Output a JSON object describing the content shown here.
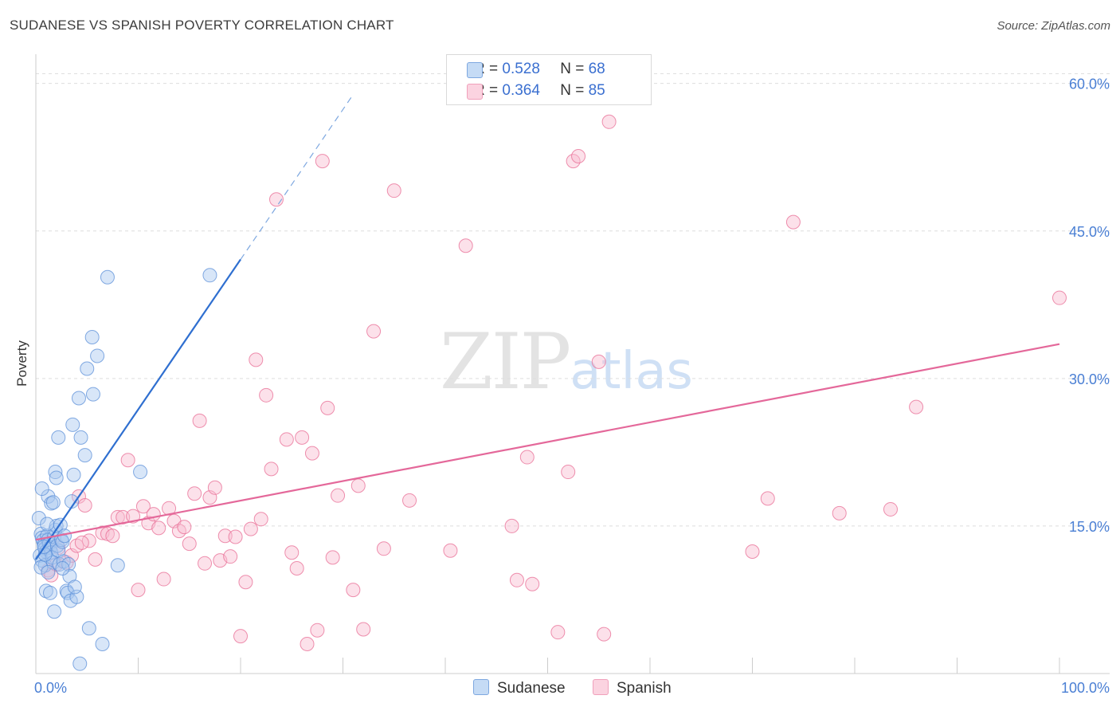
{
  "header": {
    "title": "SUDANESE VS SPANISH POVERTY CORRELATION CHART",
    "source": "Source: ZipAtlas.com"
  },
  "watermark": {
    "zip": "ZIP",
    "atlas": "atlas"
  },
  "legend": {
    "rows": [
      {
        "r_label": "R = ",
        "r_value": "0.528",
        "n_label": "N = ",
        "n_value": "68",
        "color": "#a8c8f0"
      },
      {
        "r_label": "R = ",
        "r_value": "0.364",
        "n_label": "N = ",
        "n_value": "85",
        "color": "#f8bcd0"
      }
    ]
  },
  "bottom_legend": {
    "sudanese": "Sudanese",
    "spanish": "Spanish"
  },
  "chart_data": {
    "type": "scatter",
    "title": "SUDANESE VS SPANISH POVERTY CORRELATION CHART",
    "xlabel": "",
    "ylabel": "Poverty",
    "xlim": [
      0,
      100
    ],
    "ylim": [
      0,
      62
    ],
    "x_tick_labels": [
      "0.0%",
      "100.0%"
    ],
    "y_ticks": [
      15,
      30,
      45,
      60
    ],
    "y_tick_labels": [
      "15.0%",
      "30.0%",
      "45.0%",
      "60.0%"
    ],
    "series": [
      {
        "name": "Sudanese",
        "color": "#5b8fd8",
        "fill": "#a8c8f0",
        "r": 0.528,
        "n": 68,
        "trend": {
          "x0": 0,
          "y0": 11.6,
          "x1": 20,
          "y1": 42.1,
          "dash_to_x": 31
        },
        "points": [
          [
            0.3,
            15.8
          ],
          [
            0.5,
            14.2
          ],
          [
            0.6,
            13.8
          ],
          [
            0.7,
            13.5
          ],
          [
            0.8,
            13.1
          ],
          [
            0.9,
            12.7
          ],
          [
            1.0,
            12.4
          ],
          [
            0.4,
            12.0
          ],
          [
            0.6,
            11.5
          ],
          [
            0.9,
            11.0
          ],
          [
            0.5,
            10.8
          ],
          [
            1.1,
            14.0
          ],
          [
            1.2,
            13.6
          ],
          [
            1.3,
            13.2
          ],
          [
            1.4,
            12.8
          ],
          [
            1.5,
            12.3
          ],
          [
            1.6,
            11.8
          ],
          [
            1.7,
            11.3
          ],
          [
            1.8,
            13.9
          ],
          [
            1.9,
            14.6
          ],
          [
            2.0,
            15.0
          ],
          [
            2.1,
            13.0
          ],
          [
            2.2,
            12.5
          ],
          [
            2.3,
            11.1
          ],
          [
            1.1,
            15.2
          ],
          [
            1.2,
            18.0
          ],
          [
            1.5,
            17.3
          ],
          [
            1.7,
            17.4
          ],
          [
            1.9,
            20.5
          ],
          [
            2.0,
            19.9
          ],
          [
            2.2,
            24.0
          ],
          [
            2.4,
            15.1
          ],
          [
            2.5,
            13.6
          ],
          [
            2.6,
            13.4
          ],
          [
            2.7,
            11.4
          ],
          [
            2.8,
            14.0
          ],
          [
            3.0,
            8.4
          ],
          [
            3.1,
            8.2
          ],
          [
            3.2,
            11.1
          ],
          [
            3.3,
            9.9
          ],
          [
            3.4,
            7.4
          ],
          [
            3.5,
            17.5
          ],
          [
            3.6,
            25.3
          ],
          [
            3.7,
            20.2
          ],
          [
            4.0,
            7.8
          ],
          [
            4.2,
            28.0
          ],
          [
            4.4,
            24.0
          ],
          [
            4.8,
            22.2
          ],
          [
            5.0,
            31.0
          ],
          [
            5.2,
            4.6
          ],
          [
            5.5,
            34.2
          ],
          [
            5.6,
            28.4
          ],
          [
            6.0,
            32.3
          ],
          [
            6.5,
            3.0
          ],
          [
            7.0,
            40.3
          ],
          [
            8.0,
            11.0
          ],
          [
            10.2,
            20.5
          ],
          [
            17.0,
            40.5
          ],
          [
            1.0,
            8.4
          ],
          [
            1.4,
            8.2
          ],
          [
            1.8,
            6.3
          ],
          [
            4.3,
            1.0
          ],
          [
            0.6,
            18.8
          ],
          [
            1.2,
            10.3
          ],
          [
            0.9,
            12.1
          ],
          [
            2.6,
            10.7
          ],
          [
            0.8,
            12.9
          ],
          [
            3.8,
            8.8
          ]
        ]
      },
      {
        "name": "Spanish",
        "color": "#e86c94",
        "fill": "#f8bcd0",
        "r": 0.364,
        "n": 85,
        "trend": {
          "x0": 0,
          "y0": 13.6,
          "x1": 100,
          "y1": 33.5
        },
        "points": [
          [
            1.2,
            10.5
          ],
          [
            1.5,
            10.0
          ],
          [
            2.0,
            11.1
          ],
          [
            2.2,
            12.8
          ],
          [
            3.0,
            11.3
          ],
          [
            3.5,
            12.0
          ],
          [
            4.0,
            13.0
          ],
          [
            4.2,
            18.0
          ],
          [
            4.8,
            17.1
          ],
          [
            5.2,
            13.5
          ],
          [
            5.8,
            11.6
          ],
          [
            6.5,
            14.3
          ],
          [
            7.0,
            14.2
          ],
          [
            7.5,
            14.0
          ],
          [
            8.0,
            15.9
          ],
          [
            8.5,
            15.9
          ],
          [
            9.0,
            21.7
          ],
          [
            9.5,
            16.0
          ],
          [
            10.0,
            8.5
          ],
          [
            10.5,
            17.0
          ],
          [
            11.0,
            15.3
          ],
          [
            11.5,
            16.2
          ],
          [
            12.0,
            14.8
          ],
          [
            12.5,
            9.6
          ],
          [
            13.0,
            16.8
          ],
          [
            13.5,
            15.5
          ],
          [
            14.0,
            14.5
          ],
          [
            14.5,
            14.9
          ],
          [
            15.0,
            13.2
          ],
          [
            15.5,
            18.3
          ],
          [
            16.0,
            25.7
          ],
          [
            16.5,
            11.2
          ],
          [
            17.0,
            17.9
          ],
          [
            17.5,
            18.9
          ],
          [
            18.0,
            11.5
          ],
          [
            18.5,
            14.0
          ],
          [
            19.0,
            11.9
          ],
          [
            19.5,
            13.9
          ],
          [
            20.0,
            3.8
          ],
          [
            20.5,
            9.3
          ],
          [
            21.0,
            14.7
          ],
          [
            21.5,
            31.9
          ],
          [
            22.0,
            15.7
          ],
          [
            22.5,
            28.3
          ],
          [
            23.0,
            20.8
          ],
          [
            23.5,
            48.2
          ],
          [
            24.5,
            23.8
          ],
          [
            25.0,
            12.3
          ],
          [
            25.5,
            10.7
          ],
          [
            26.0,
            24.0
          ],
          [
            26.5,
            3.0
          ],
          [
            27.0,
            22.4
          ],
          [
            27.5,
            4.4
          ],
          [
            28.0,
            52.1
          ],
          [
            28.5,
            27.0
          ],
          [
            29.0,
            11.8
          ],
          [
            29.5,
            18.1
          ],
          [
            31.0,
            8.5
          ],
          [
            31.5,
            19.1
          ],
          [
            32.0,
            4.5
          ],
          [
            33.0,
            34.8
          ],
          [
            34.0,
            12.7
          ],
          [
            35.0,
            49.1
          ],
          [
            36.5,
            17.6
          ],
          [
            40.5,
            12.5
          ],
          [
            42.0,
            43.5
          ],
          [
            46.5,
            15.0
          ],
          [
            47.0,
            9.5
          ],
          [
            48.0,
            22.0
          ],
          [
            48.5,
            9.1
          ],
          [
            51.0,
            4.2
          ],
          [
            52.0,
            20.5
          ],
          [
            52.5,
            52.1
          ],
          [
            53.0,
            52.6
          ],
          [
            55.0,
            31.7
          ],
          [
            55.5,
            4.0
          ],
          [
            56.0,
            56.1
          ],
          [
            70.0,
            12.4
          ],
          [
            71.5,
            17.8
          ],
          [
            74.0,
            45.9
          ],
          [
            78.5,
            16.3
          ],
          [
            83.5,
            16.7
          ],
          [
            86.0,
            27.1
          ],
          [
            100.0,
            38.2
          ],
          [
            4.5,
            13.3
          ]
        ]
      }
    ]
  }
}
